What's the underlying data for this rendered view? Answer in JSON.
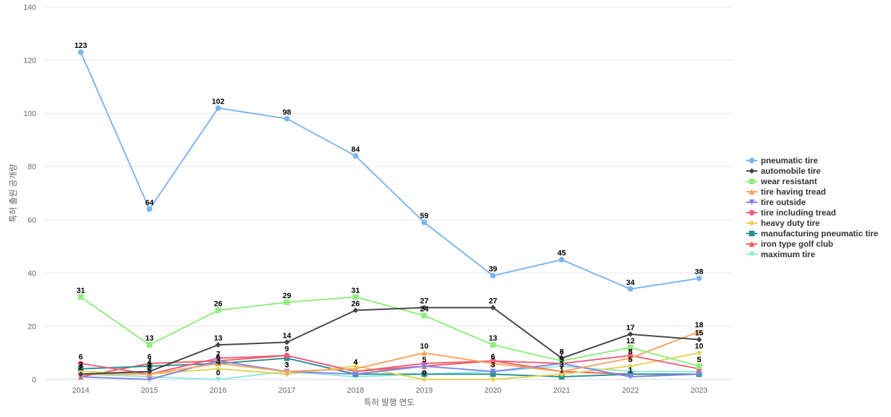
{
  "chart_data": {
    "type": "line",
    "xlabel": "특허 발행 연도",
    "ylabel": "특허 출원 공개량",
    "x": [
      2014,
      2015,
      2016,
      2017,
      2018,
      2019,
      2020,
      2021,
      2022,
      2023
    ],
    "ylim": [
      0,
      140
    ],
    "yticks": [
      0,
      20,
      40,
      60,
      80,
      100,
      120,
      140
    ],
    "grid": true,
    "legend_position": "right",
    "series": [
      {
        "name": "pneumatic tire",
        "color": "#7cb5ec",
        "marker": "circle",
        "values": [
          123,
          64,
          102,
          98,
          84,
          59,
          39,
          45,
          34,
          38
        ],
        "labeled": true
      },
      {
        "name": "automobile tire",
        "color": "#434348",
        "marker": "diamond",
        "values": [
          2,
          3,
          13,
          14,
          26,
          27,
          27,
          8,
          17,
          15
        ],
        "labeled": true
      },
      {
        "name": "wear resistant",
        "color": "#90ed7d",
        "marker": "square",
        "values": [
          31,
          13,
          26,
          29,
          31,
          24,
          13,
          7,
          12,
          5
        ],
        "labeled": true
      },
      {
        "name": "tire having tread",
        "color": "#f7a35c",
        "marker": "triangle",
        "values": [
          2,
          2,
          6,
          3,
          4,
          10,
          6,
          3,
          8,
          18
        ],
        "labeled": true
      },
      {
        "name": "tire outside",
        "color": "#8085e9",
        "marker": "triangle-down",
        "values": [
          1,
          0,
          7,
          3,
          2,
          5,
          3,
          6,
          1,
          2
        ],
        "labeled": false
      },
      {
        "name": "tire including tread",
        "color": "#f15c80",
        "marker": "circle",
        "values": [
          6,
          2,
          8,
          9,
          3,
          6,
          7,
          6,
          9,
          4
        ],
        "labeled": false
      },
      {
        "name": "heavy duty tire",
        "color": "#e4d354",
        "marker": "diamond",
        "values": [
          3,
          2,
          4,
          2,
          5,
          0,
          0,
          2,
          5,
          10
        ],
        "labeled": false
      },
      {
        "name": "manufacturing pneumatic tire",
        "color": "#2b908f",
        "marker": "square",
        "values": [
          4,
          5,
          6,
          8,
          2,
          2,
          2,
          1,
          2,
          2
        ],
        "labeled": false
      },
      {
        "name": "iron type golf club",
        "color": "#f45b5b",
        "marker": "triangle",
        "values": [
          1,
          6,
          7,
          9,
          3,
          5,
          7,
          3,
          2,
          2
        ],
        "labeled": false
      },
      {
        "name": "maximum tire",
        "color": "#91e8e1",
        "marker": "triangle-down",
        "values": [
          2,
          1,
          0,
          3,
          1,
          2,
          3,
          5,
          3,
          3
        ],
        "labeled": false
      }
    ],
    "extra_labels": [
      {
        "x": 2014,
        "y": 6,
        "text": "6"
      },
      {
        "x": 2014,
        "y": 3,
        "text": "3"
      },
      {
        "x": 2015,
        "y": 6,
        "text": "6"
      },
      {
        "x": 2015,
        "y": 4,
        "text": "4"
      },
      {
        "x": 2015,
        "y": 2,
        "text": "2"
      },
      {
        "x": 2016,
        "y": 7,
        "text": "7"
      },
      {
        "x": 2016,
        "y": 4,
        "text": "4"
      },
      {
        "x": 2016,
        "y": 0,
        "text": "0"
      },
      {
        "x": 2017,
        "y": 9,
        "text": "9"
      },
      {
        "x": 2017,
        "y": 3,
        "text": "3"
      },
      {
        "x": 2018,
        "y": 4,
        "text": "4"
      },
      {
        "x": 2019,
        "y": 5,
        "text": "5"
      },
      {
        "x": 2019,
        "y": 0,
        "text": "0"
      },
      {
        "x": 2020,
        "y": 6,
        "text": "6"
      },
      {
        "x": 2020,
        "y": 3,
        "text": "3"
      },
      {
        "x": 2021,
        "y": 5,
        "text": "5"
      },
      {
        "x": 2021,
        "y": 1,
        "text": "1"
      },
      {
        "x": 2022,
        "y": 8,
        "text": "8"
      },
      {
        "x": 2022,
        "y": 5,
        "text": "5"
      },
      {
        "x": 2022,
        "y": 1,
        "text": "1"
      },
      {
        "x": 2023,
        "y": 10,
        "text": "10"
      },
      {
        "x": 2023,
        "y": 5,
        "text": "5"
      }
    ]
  }
}
